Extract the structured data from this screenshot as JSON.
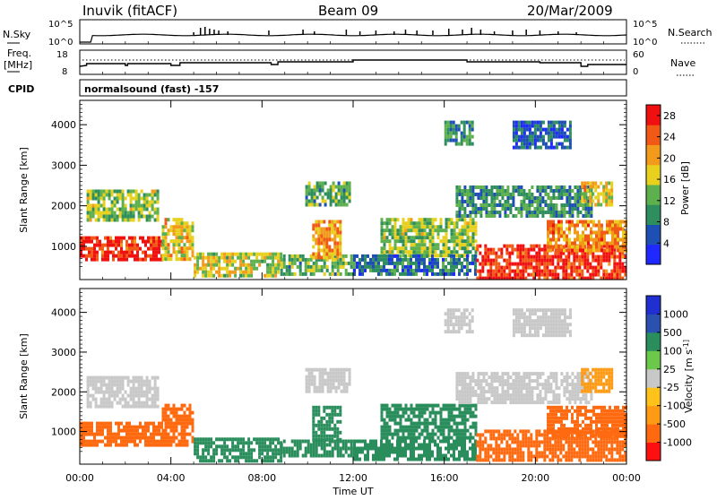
{
  "header": {
    "station": "Inuvik (fitACF)",
    "beam": "Beam 09",
    "date": "20/Mar/2009"
  },
  "sky_panel": {
    "left_label": "N.Sky",
    "right_label": "N.Search",
    "left_ticks": [
      "10^5",
      "10^0"
    ],
    "right_ticks": [
      "10^5",
      "10^0"
    ]
  },
  "freq_panel": {
    "left_label_1": "Freq.",
    "left_label_2": "[MHz]",
    "right_label": "Nave",
    "left_ticks": [
      "18",
      "8"
    ],
    "right_ticks": [
      "60",
      "0"
    ]
  },
  "cpid": {
    "label": "CPID",
    "value": "normalsound (fast) -157"
  },
  "colors": {
    "power_scale": [
      "#1f28ff",
      "#1d4fb4",
      "#2e8e5e",
      "#5db04d",
      "#e8d01f",
      "#f29a1b",
      "#f05a16",
      "#f01010"
    ],
    "velocity_scale": [
      "#ff1010",
      "#ff6a10",
      "#ff9a14",
      "#ffc21a",
      "#c8c8c8",
      "#6cc84a",
      "#2a8e5c",
      "#2a50b0",
      "#2030d0"
    ]
  },
  "chart_data": [
    {
      "type": "heatmap",
      "title": "",
      "xlabel": "",
      "ylabel": "Slant Range [km]",
      "xlim": [
        "00:00",
        "00:00"
      ],
      "x_ticks": [
        "00:00",
        "04:00",
        "08:00",
        "12:00",
        "16:00",
        "20:00",
        "00:00"
      ],
      "y_ticks": [
        1000,
        2000,
        3000,
        4000
      ],
      "ylim": [
        180,
        4600
      ],
      "colorbar_label": "Power [dB]",
      "colorbar_ticks": [
        4,
        8,
        12,
        16,
        20,
        24,
        28
      ],
      "colorbar_range": [
        0,
        30
      ],
      "regions": [
        {
          "t0": 0.0,
          "t1": 3.6,
          "r0": 650,
          "r1": 1250,
          "value": 27
        },
        {
          "t0": 3.6,
          "t1": 5.0,
          "r0": 700,
          "r1": 1700,
          "value": 18
        },
        {
          "t0": 0.3,
          "t1": 3.4,
          "r0": 1650,
          "r1": 2400,
          "value": 14
        },
        {
          "t0": 5.0,
          "t1": 8.8,
          "r0": 300,
          "r1": 850,
          "value": 16
        },
        {
          "t0": 8.8,
          "t1": 12.0,
          "r0": 350,
          "r1": 800,
          "value": 12
        },
        {
          "t0": 10.2,
          "t1": 11.4,
          "r0": 750,
          "r1": 1650,
          "value": 20
        },
        {
          "t0": 9.9,
          "t1": 11.8,
          "r0": 2000,
          "r1": 2600,
          "value": 12
        },
        {
          "t0": 13.2,
          "t1": 17.4,
          "r0": 800,
          "r1": 1700,
          "value": 14
        },
        {
          "t0": 12.0,
          "t1": 17.4,
          "r0": 300,
          "r1": 800,
          "value": 8
        },
        {
          "t0": 17.4,
          "t1": 24.0,
          "r0": 250,
          "r1": 1050,
          "value": 27
        },
        {
          "t0": 20.5,
          "t1": 24.0,
          "r0": 900,
          "r1": 1650,
          "value": 22
        },
        {
          "t0": 16.5,
          "t1": 22.5,
          "r0": 1750,
          "r1": 2500,
          "value": 10
        },
        {
          "t0": 22.0,
          "t1": 23.4,
          "r0": 2000,
          "r1": 2600,
          "value": 18
        },
        {
          "t0": 16.0,
          "t1": 17.2,
          "r0": 3500,
          "r1": 4100,
          "value": 10
        },
        {
          "t0": 19.0,
          "t1": 21.5,
          "r0": 3450,
          "r1": 4100,
          "value": 6
        }
      ]
    },
    {
      "type": "heatmap",
      "title": "",
      "xlabel": "Time UT",
      "ylabel": "Slant Range [km]",
      "xlim": [
        "00:00",
        "00:00"
      ],
      "x_ticks": [
        "00:00",
        "04:00",
        "08:00",
        "12:00",
        "16:00",
        "20:00",
        "00:00"
      ],
      "y_ticks": [
        1000,
        2000,
        3000,
        4000
      ],
      "ylim": [
        180,
        4600
      ],
      "colorbar_label": "Velocity [m s^-1]",
      "colorbar_ticks": [
        1000,
        500,
        100,
        25,
        -25,
        -100,
        -500,
        -1000
      ],
      "regions": [
        {
          "t0": 0.0,
          "t1": 3.6,
          "r0": 650,
          "r1": 1250,
          "value": -150
        },
        {
          "t0": 3.6,
          "t1": 5.0,
          "r0": 700,
          "r1": 1700,
          "value": -150
        },
        {
          "t0": 0.3,
          "t1": 3.4,
          "r0": 1650,
          "r1": 2400,
          "value": 0
        },
        {
          "t0": 5.0,
          "t1": 8.8,
          "r0": 300,
          "r1": 850,
          "value": 300
        },
        {
          "t0": 8.8,
          "t1": 12.0,
          "r0": 350,
          "r1": 800,
          "value": 300
        },
        {
          "t0": 10.2,
          "t1": 11.4,
          "r0": 750,
          "r1": 1650,
          "value": 300
        },
        {
          "t0": 9.9,
          "t1": 11.8,
          "r0": 2000,
          "r1": 2600,
          "value": 0
        },
        {
          "t0": 13.2,
          "t1": 17.4,
          "r0": 800,
          "r1": 1700,
          "value": 300
        },
        {
          "t0": 12.0,
          "t1": 17.4,
          "r0": 300,
          "r1": 800,
          "value": 300
        },
        {
          "t0": 17.4,
          "t1": 24.0,
          "r0": 250,
          "r1": 1050,
          "value": -150
        },
        {
          "t0": 20.5,
          "t1": 24.0,
          "r0": 900,
          "r1": 1650,
          "value": -150
        },
        {
          "t0": 16.5,
          "t1": 22.5,
          "r0": 1750,
          "r1": 2500,
          "value": 0
        },
        {
          "t0": 22.0,
          "t1": 23.4,
          "r0": 2000,
          "r1": 2600,
          "value": -60
        },
        {
          "t0": 16.0,
          "t1": 17.2,
          "r0": 3500,
          "r1": 4100,
          "value": 0
        },
        {
          "t0": 19.0,
          "t1": 21.5,
          "r0": 3450,
          "r1": 4100,
          "value": 0
        }
      ]
    }
  ]
}
